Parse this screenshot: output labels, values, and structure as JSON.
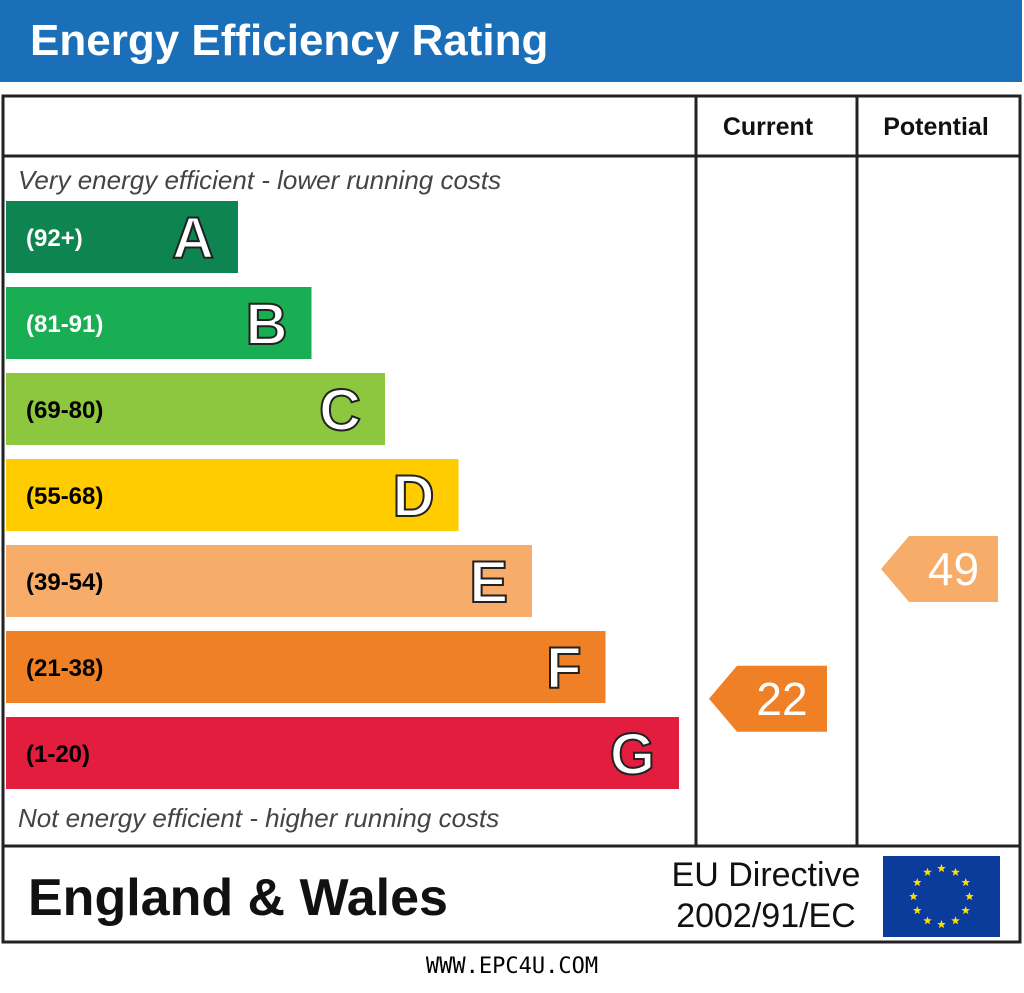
{
  "header": {
    "title": "Energy Efficiency Rating"
  },
  "columns": {
    "current": "Current",
    "potential": "Potential"
  },
  "notes": {
    "top": "Very energy efficient - lower running costs",
    "bottom": "Not energy efficient - higher running costs"
  },
  "footer": {
    "region": "England & Wales",
    "directive_line1": "EU Directive",
    "directive_line2": "2002/91/EC",
    "url": "WWW.EPC4U.COM"
  },
  "chart_data": {
    "type": "bar",
    "categories": [
      "A",
      "B",
      "C",
      "D",
      "E",
      "F",
      "G"
    ],
    "ranges": [
      "(92+)",
      "(81-91)",
      "(69-80)",
      "(55-68)",
      "(39-54)",
      "(21-38)",
      "(1-20)"
    ],
    "colors": [
      "#0e8550",
      "#1aae54",
      "#8dc63f",
      "#ffcc00",
      "#f7ac69",
      "#ef8025",
      "#e31d3d"
    ],
    "range_text_colors": [
      "#ffffff",
      "#ffffff",
      "#000000",
      "#000000",
      "#000000",
      "#000000",
      "#000000"
    ],
    "current": {
      "value": 22,
      "band": "F",
      "color": "#ef8025"
    },
    "potential": {
      "value": 49,
      "band": "E",
      "color": "#f7ac69"
    }
  }
}
